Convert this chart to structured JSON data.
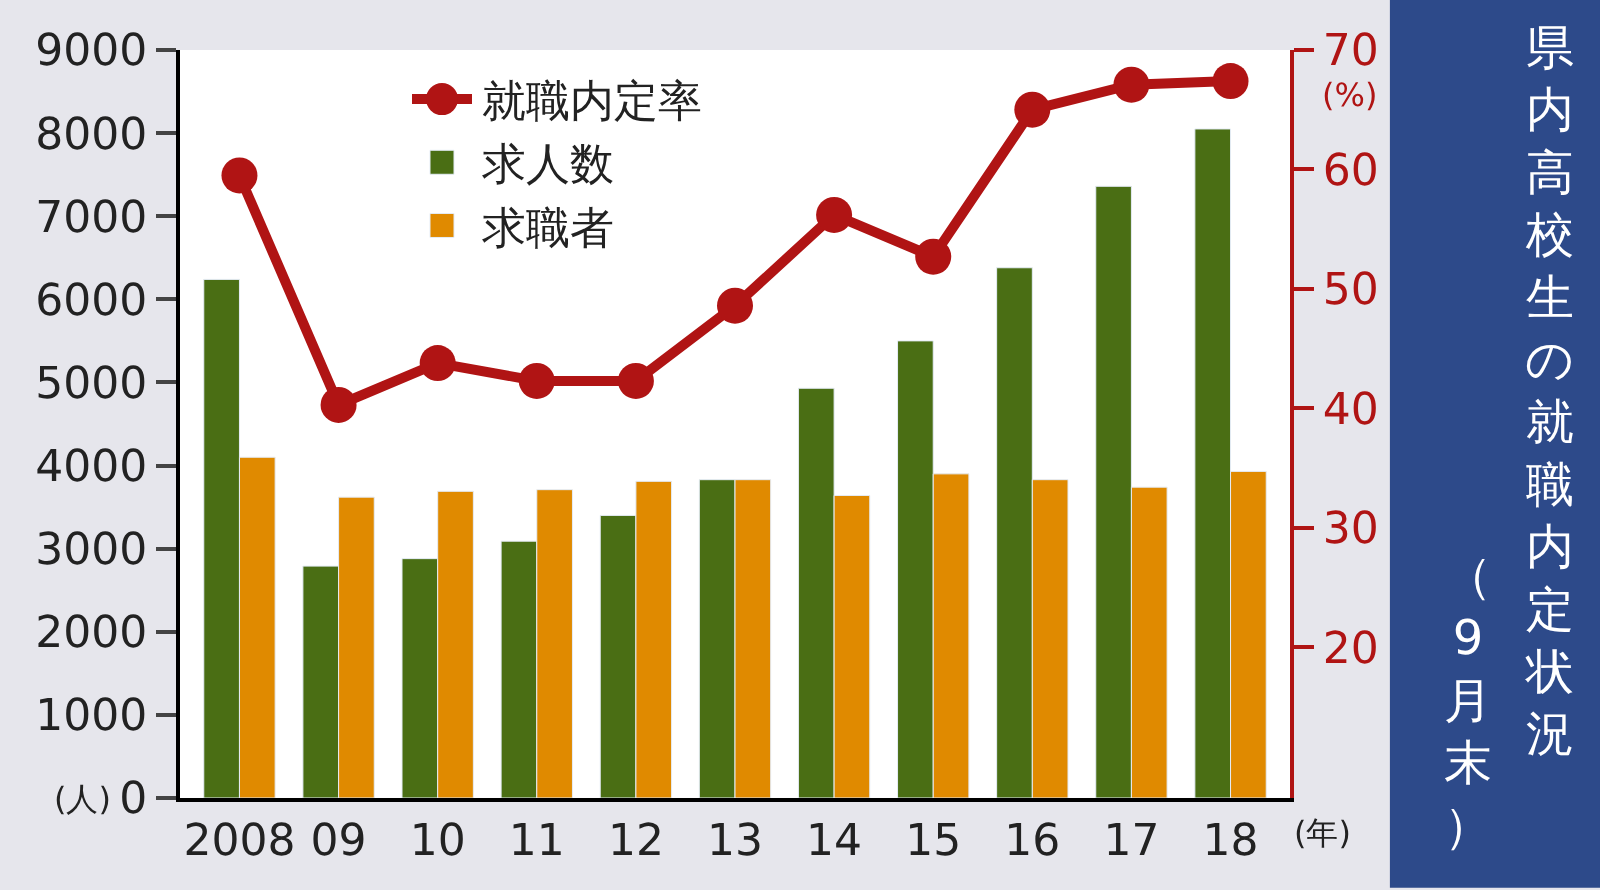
{
  "chart_data": {
    "type": "bar",
    "title": "県内高校生の就職内定状況",
    "subtitle": "（9月末）",
    "xlabel": "(年)",
    "ylabel": "(人)",
    "y2label": "(%)",
    "categories": [
      "2008",
      "09",
      "10",
      "11",
      "12",
      "13",
      "14",
      "15",
      "16",
      "17",
      "18"
    ],
    "series": [
      {
        "name": "就職内定率",
        "type": "line",
        "axis": "y2",
        "color": "#b01414",
        "values": [
          59.5,
          40.3,
          43.8,
          42.3,
          42.3,
          48.6,
          56.2,
          52.7,
          65.0,
          67.1,
          67.4
        ]
      },
      {
        "name": "求人数",
        "color": "#4a6e14",
        "values": [
          6240,
          2790,
          2880,
          3090,
          3400,
          3830,
          4930,
          5500,
          6380,
          7360,
          8050
        ]
      },
      {
        "name": "求職者",
        "color": "#e08a00",
        "values": [
          4100,
          3620,
          3690,
          3710,
          3810,
          3830,
          3640,
          3900,
          3830,
          3740,
          3930
        ]
      }
    ],
    "ylim": [
      0,
      9000
    ],
    "yticks": [
      0,
      1000,
      2000,
      3000,
      4000,
      5000,
      6000,
      7000,
      8000,
      9000
    ],
    "y2lim": [
      7.4,
      70
    ],
    "y2ticks": [
      20,
      30,
      40,
      50,
      60,
      70
    ],
    "legend": "top left",
    "marker": "circle"
  }
}
